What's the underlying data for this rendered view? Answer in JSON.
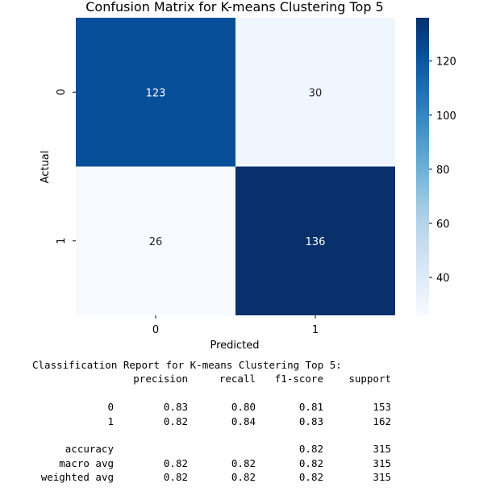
{
  "chart_data": {
    "type": "heatmap",
    "title": "Confusion Matrix for K-means Clustering Top 5",
    "xlabel": "Predicted",
    "ylabel": "Actual",
    "x_categories": [
      "0",
      "1"
    ],
    "y_categories": [
      "0",
      "1"
    ],
    "values": [
      [
        123,
        30
      ],
      [
        26,
        136
      ]
    ],
    "colormap": "Blues",
    "color_range": [
      26,
      136
    ],
    "colorbar_ticks": [
      40,
      60,
      80,
      100,
      120
    ],
    "colorbar_tick_labels": [
      "40",
      "60",
      "80",
      "100",
      "120"
    ],
    "annotations": [
      "123",
      "30",
      "26",
      "136"
    ]
  },
  "report": {
    "title": "Classification Report for K-means Clustering Top 5:",
    "headers": [
      "precision",
      "recall",
      "f1-score",
      "support"
    ],
    "rows": [
      {
        "label": "0",
        "precision": "0.83",
        "recall": "0.80",
        "f1": "0.81",
        "support": "153"
      },
      {
        "label": "1",
        "precision": "0.82",
        "recall": "0.84",
        "f1": "0.83",
        "support": "162"
      },
      {
        "label": "accuracy",
        "precision": "",
        "recall": "",
        "f1": "0.82",
        "support": "315"
      },
      {
        "label": "macro avg",
        "precision": "0.82",
        "recall": "0.82",
        "f1": "0.82",
        "support": "315"
      },
      {
        "label": "weighted avg",
        "precision": "0.82",
        "recall": "0.82",
        "f1": "0.82",
        "support": "315"
      }
    ]
  }
}
